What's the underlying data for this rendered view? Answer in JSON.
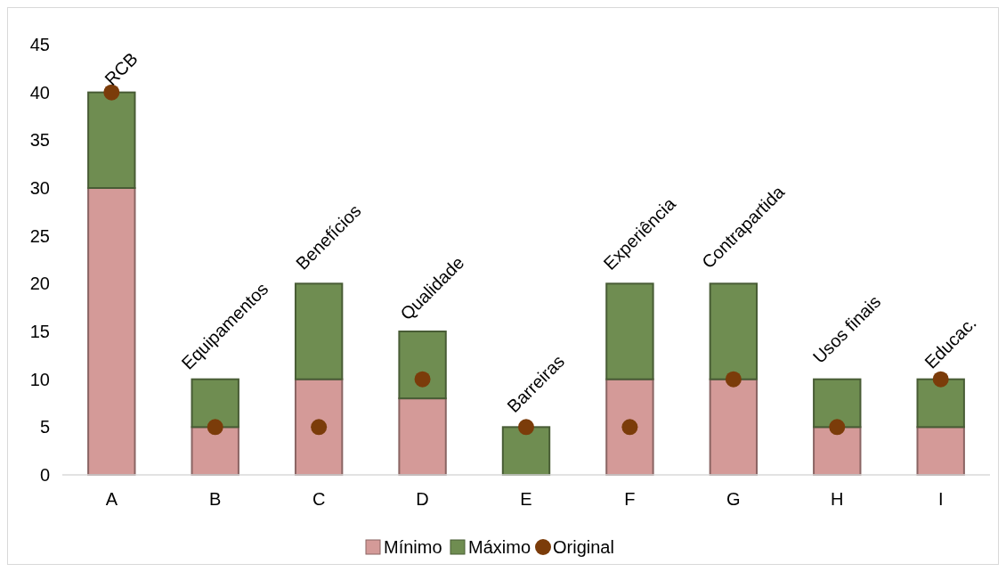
{
  "chart_data": {
    "type": "bar",
    "stacked": true,
    "categories": [
      "A",
      "B",
      "C",
      "D",
      "E",
      "F",
      "G",
      "H",
      "I"
    ],
    "series": [
      {
        "name": "Mínimo",
        "color": "#d49a98",
        "values": [
          30,
          5,
          10,
          8,
          0,
          10,
          10,
          5,
          5
        ]
      },
      {
        "name": "Máximo",
        "color": "#6f8d51",
        "values": [
          10,
          5,
          10,
          7,
          5,
          10,
          10,
          5,
          5
        ]
      },
      {
        "name": "Original",
        "type": "scatter",
        "color": "#7b3c0a",
        "x": [
          "A",
          "B",
          "C",
          "D",
          "E",
          "F",
          "G",
          "H",
          "I"
        ],
        "values": [
          40,
          5,
          5,
          10,
          5,
          5,
          10,
          5,
          10
        ]
      }
    ],
    "ylim": [
      0,
      45
    ],
    "yticks": [
      0,
      5,
      10,
      15,
      20,
      25,
      30,
      35,
      40,
      45
    ],
    "grid": false,
    "legend": "bottom",
    "marker": "circle",
    "annotations": [
      {
        "text": "RCB",
        "x": "A",
        "y": 40
      },
      {
        "text": "Equipamentos",
        "x": "B",
        "y": 10
      },
      {
        "text": "Benefícios",
        "x": "C",
        "y": 20
      },
      {
        "text": "Qualidade",
        "x": "D",
        "y": 15
      },
      {
        "text": "Barreiras",
        "x": "E",
        "y": 5
      },
      {
        "text": "Experiência",
        "x": "F",
        "y": 20
      },
      {
        "text": "Contrapartida",
        "x": "G",
        "y": 20
      },
      {
        "text": "Usos finais",
        "x": "H",
        "y": 10
      },
      {
        "text": "Educac.",
        "x": "I",
        "y": 10
      }
    ]
  }
}
